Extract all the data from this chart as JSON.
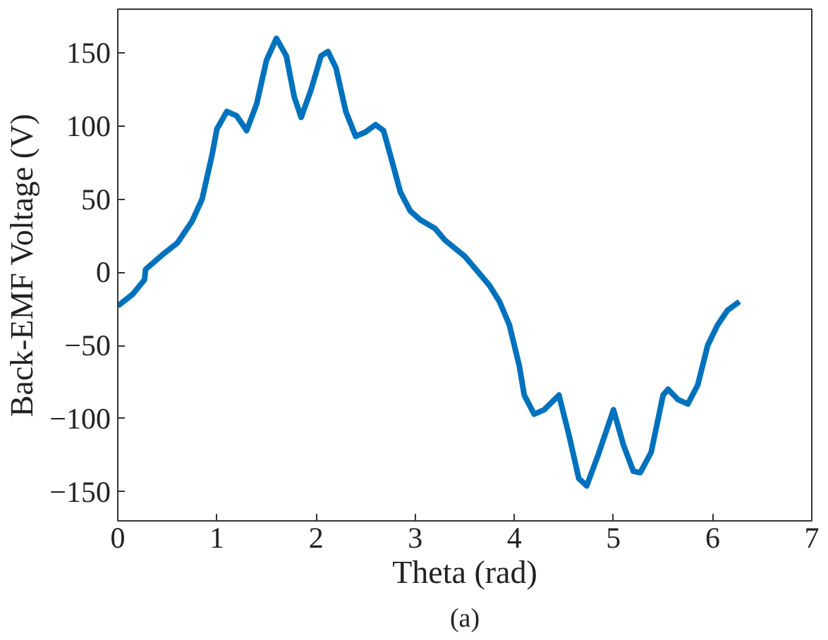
{
  "chart_data": {
    "type": "line",
    "xlabel": "Theta (rad)",
    "ylabel": "Back-EMF Voltage (V)",
    "annotations": [
      "(a)"
    ],
    "xlim": [
      0,
      7
    ],
    "ylim": [
      -170,
      180
    ],
    "xticks": [
      0,
      1,
      2,
      3,
      4,
      5,
      6,
      7
    ],
    "yticks": [
      -150,
      -100,
      -50,
      0,
      50,
      100,
      150
    ],
    "line_style": "solid",
    "x": [
      0,
      0.15,
      0.27,
      0.28,
      0.45,
      0.6,
      0.75,
      0.85,
      0.95,
      1.0,
      1.1,
      1.2,
      1.3,
      1.4,
      1.5,
      1.6,
      1.7,
      1.78,
      1.85,
      1.95,
      2.05,
      2.12,
      2.2,
      2.3,
      2.4,
      2.5,
      2.6,
      2.68,
      2.75,
      2.85,
      2.95,
      3.05,
      3.2,
      3.3,
      3.5,
      3.75,
      3.85,
      3.95,
      4.05,
      4.1,
      4.2,
      4.3,
      4.45,
      4.55,
      4.65,
      4.73,
      4.85,
      5.0,
      5.1,
      5.2,
      5.27,
      5.38,
      5.5,
      5.55,
      5.65,
      5.75,
      5.85,
      5.95,
      6.05,
      6.15,
      6.27
    ],
    "series": [
      {
        "color": "#0072bd",
        "values": [
          -23,
          -15,
          -5,
          2,
          12,
          20,
          35,
          50,
          80,
          98,
          110,
          107,
          97,
          115,
          145,
          160,
          148,
          120,
          106,
          125,
          148,
          151,
          140,
          110,
          93,
          96,
          101,
          97,
          80,
          55,
          42,
          36,
          30,
          22,
          11,
          -9,
          -20,
          -36,
          -64,
          -84,
          -97,
          -94,
          -84,
          -111,
          -141,
          -146,
          -124,
          -94,
          -118,
          -136,
          -137,
          -123,
          -84,
          -80,
          -87,
          -90,
          -77,
          -50,
          -36,
          -26,
          -20
        ]
      }
    ]
  }
}
